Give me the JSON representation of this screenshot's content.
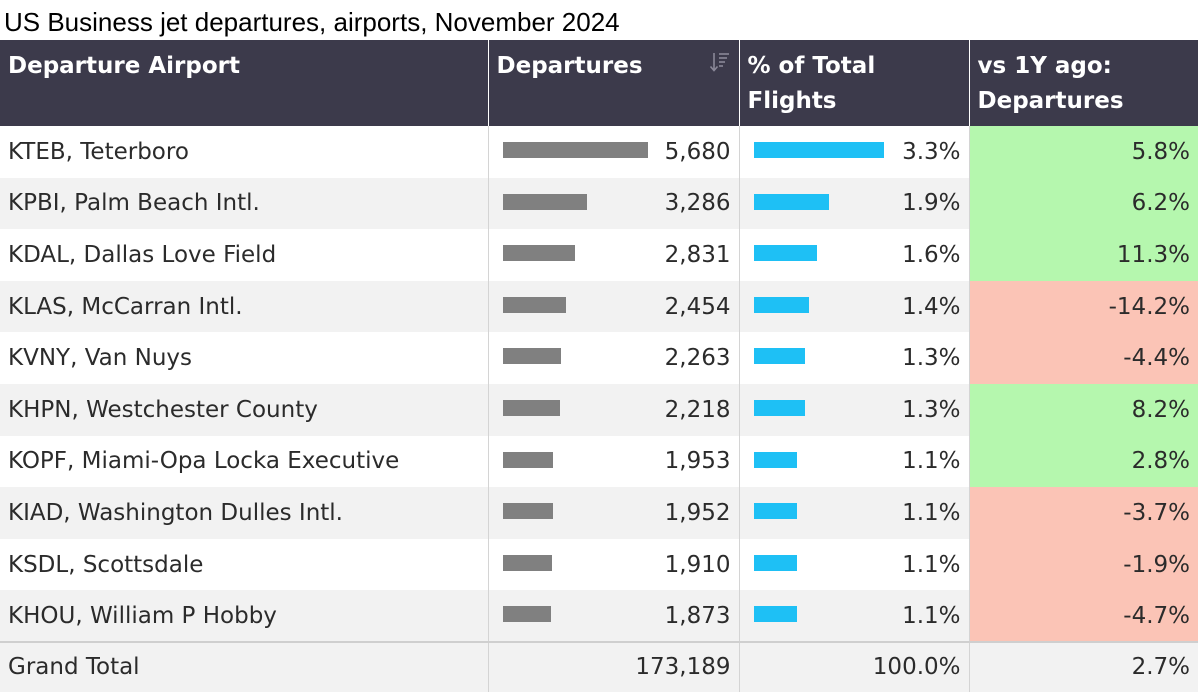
{
  "chart_data": {
    "type": "table",
    "title": "US Business jet departures, airports, November 2024",
    "columns": [
      "Departure Airport",
      "Departures",
      "% of Total Flights",
      "vs 1Y ago: Departures"
    ],
    "rows": [
      {
        "airport": "KTEB, Teterboro",
        "departures": 5680,
        "departures_label": "5,680",
        "pct": 3.3,
        "pct_label": "3.3%",
        "yoy": 5.8,
        "yoy_label": "5.8%"
      },
      {
        "airport": "KPBI, Palm Beach Intl.",
        "departures": 3286,
        "departures_label": "3,286",
        "pct": 1.9,
        "pct_label": "1.9%",
        "yoy": 6.2,
        "yoy_label": "6.2%"
      },
      {
        "airport": "KDAL, Dallas Love Field",
        "departures": 2831,
        "departures_label": "2,831",
        "pct": 1.6,
        "pct_label": "1.6%",
        "yoy": 11.3,
        "yoy_label": "11.3%"
      },
      {
        "airport": "KLAS, McCarran Intl.",
        "departures": 2454,
        "departures_label": "2,454",
        "pct": 1.4,
        "pct_label": "1.4%",
        "yoy": -14.2,
        "yoy_label": "-14.2%"
      },
      {
        "airport": "KVNY, Van Nuys",
        "departures": 2263,
        "departures_label": "2,263",
        "pct": 1.3,
        "pct_label": "1.3%",
        "yoy": -4.4,
        "yoy_label": "-4.4%"
      },
      {
        "airport": "KHPN, Westchester County",
        "departures": 2218,
        "departures_label": "2,218",
        "pct": 1.3,
        "pct_label": "1.3%",
        "yoy": 8.2,
        "yoy_label": "8.2%"
      },
      {
        "airport": "KOPF, Miami-Opa Locka Executive",
        "departures": 1953,
        "departures_label": "1,953",
        "pct": 1.1,
        "pct_label": "1.1%",
        "yoy": 2.8,
        "yoy_label": "2.8%"
      },
      {
        "airport": "KIAD, Washington Dulles Intl.",
        "departures": 1952,
        "departures_label": "1,952",
        "pct": 1.1,
        "pct_label": "1.1%",
        "yoy": -3.7,
        "yoy_label": "-3.7%"
      },
      {
        "airport": "KSDL, Scottsdale",
        "departures": 1910,
        "departures_label": "1,910",
        "pct": 1.1,
        "pct_label": "1.1%",
        "yoy": -1.9,
        "yoy_label": "-1.9%"
      },
      {
        "airport": "KHOU, William P Hobby",
        "departures": 1873,
        "departures_label": "1,873",
        "pct": 1.1,
        "pct_label": "1.1%",
        "yoy": -4.7,
        "yoy_label": "-4.7%"
      }
    ],
    "total": {
      "label": "Grand Total",
      "departures": 173189,
      "departures_label": "173,189",
      "pct_label": "100.0%",
      "yoy_label": "2.7%"
    },
    "bar_scale": {
      "departures_max": 5680,
      "pct_max": 3.3
    }
  },
  "header": {
    "col1": "Departure Airport",
    "col2": "Departures",
    "col3_line1": "% of Total",
    "col3_line2": "Flights",
    "col4_line1": "vs 1Y ago:",
    "col4_line2": "Departures",
    "sort_icon": "sort-descending-icon"
  },
  "colors": {
    "header_bg": "#3c3a4b",
    "departures_bar": "#808080",
    "pct_bar": "#1ec0f5",
    "positive": "#b5f7ae",
    "negative": "#fbc4b6"
  }
}
